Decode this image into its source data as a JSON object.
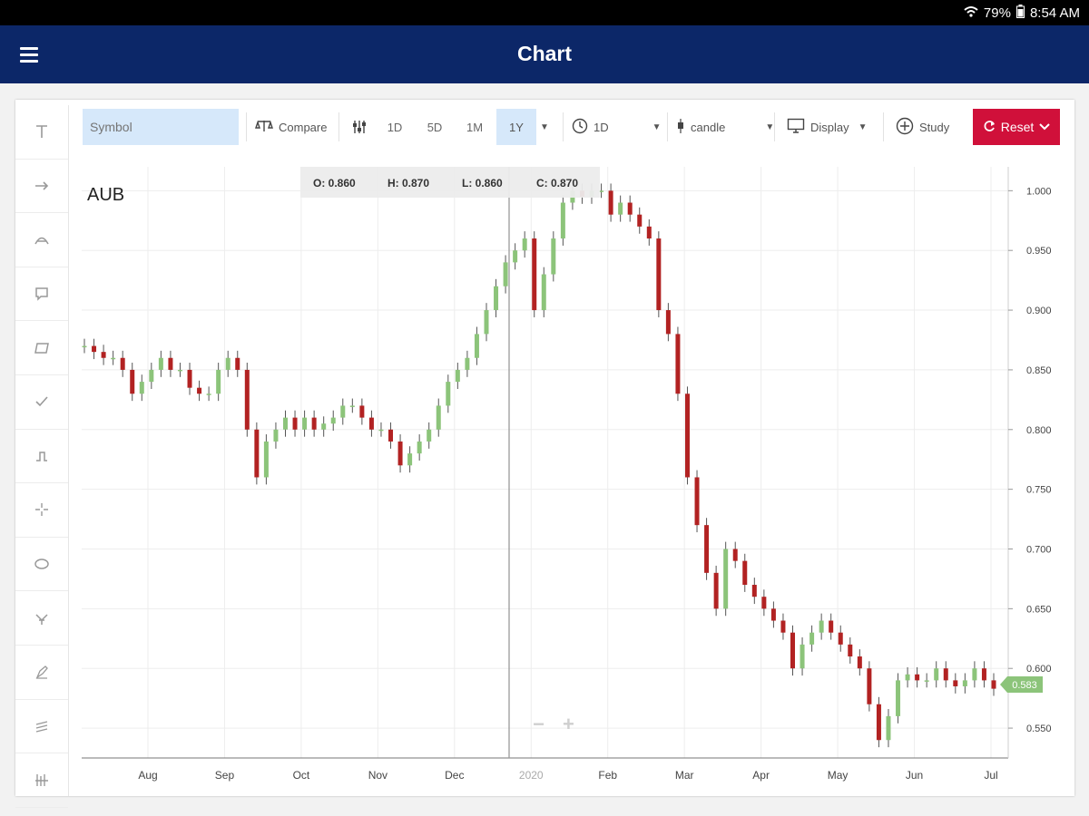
{
  "status_bar": {
    "battery": "79%",
    "time": "8:54 AM"
  },
  "app_bar": {
    "title": "Chart"
  },
  "toolbar": {
    "symbol_placeholder": "Symbol",
    "compare_label": "Compare",
    "periods": [
      "1D",
      "5D",
      "1M",
      "1Y"
    ],
    "active_period": "1Y",
    "interval_label": "1D",
    "chart_type_label": "candle",
    "display_label": "Display",
    "study_label": "Study",
    "reset_label": "Reset"
  },
  "sidebar_tools": [
    "text-tool-icon",
    "arrow-tool-icon",
    "arc-tool-icon",
    "callout-tool-icon",
    "rectangle-tool-icon",
    "check-tool-icon",
    "step-tool-icon",
    "crosshair-tool-icon",
    "ellipse-tool-icon",
    "pitchfork-tool-icon",
    "pen-tool-icon",
    "channel-tool-icon",
    "fib-tool-icon"
  ],
  "ohlc_tooltip": {
    "o": "O: 0.860",
    "h": "H: 0.870",
    "l": "L: 0.860",
    "c": "C: 0.870"
  },
  "colors": {
    "up": "#8cc47a",
    "down": "#b22222",
    "accent": "#d0103a",
    "price_tag": "#8cc47a",
    "header": "#0c2768"
  },
  "chart_data": {
    "type": "candlestick",
    "title": "AUB",
    "x_labels": [
      "Aug",
      "Sep",
      "Oct",
      "Nov",
      "Dec",
      "2020",
      "Feb",
      "Mar",
      "Apr",
      "May",
      "Jun",
      "Jul"
    ],
    "y_ticks": [
      "1.000",
      "0.950",
      "0.900",
      "0.850",
      "0.800",
      "0.750",
      "0.700",
      "0.650",
      "0.600",
      "0.550"
    ],
    "ylim": [
      0.525,
      1.02
    ],
    "last_price": "0.583",
    "close_series": [
      0.87,
      0.865,
      0.86,
      0.86,
      0.85,
      0.83,
      0.84,
      0.85,
      0.86,
      0.85,
      0.85,
      0.835,
      0.83,
      0.83,
      0.85,
      0.86,
      0.85,
      0.8,
      0.76,
      0.79,
      0.8,
      0.81,
      0.8,
      0.81,
      0.8,
      0.805,
      0.81,
      0.82,
      0.82,
      0.81,
      0.8,
      0.8,
      0.79,
      0.77,
      0.78,
      0.79,
      0.8,
      0.82,
      0.84,
      0.85,
      0.86,
      0.88,
      0.9,
      0.92,
      0.94,
      0.95,
      0.96,
      0.9,
      0.93,
      0.96,
      0.99,
      1.0,
      0.995,
      1.0,
      1.0,
      0.98,
      0.99,
      0.98,
      0.97,
      0.96,
      0.9,
      0.88,
      0.83,
      0.76,
      0.72,
      0.68,
      0.65,
      0.7,
      0.69,
      0.67,
      0.66,
      0.65,
      0.64,
      0.63,
      0.6,
      0.62,
      0.63,
      0.64,
      0.63,
      0.62,
      0.61,
      0.6,
      0.57,
      0.54,
      0.56,
      0.59,
      0.595,
      0.59,
      0.59,
      0.6,
      0.59,
      0.585,
      0.59,
      0.6,
      0.59,
      0.583
    ]
  }
}
